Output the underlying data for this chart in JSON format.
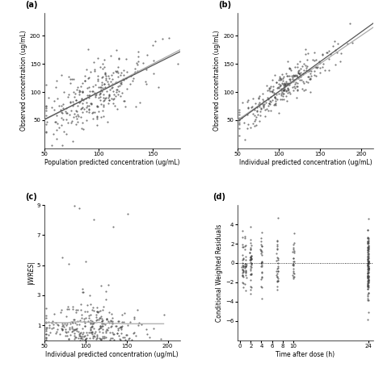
{
  "fig_width": 4.74,
  "fig_height": 4.66,
  "dpi": 100,
  "background": "#ffffff",
  "panel_labels": [
    "(a)",
    "(b)",
    "(c)",
    "(d)"
  ],
  "panel_a": {
    "xlabel": "Population predicted concentration (ug/mL)",
    "ylabel": "Observed concentration (ug/mL)",
    "xlim": [
      50,
      175
    ],
    "ylim": [
      0,
      240
    ],
    "xticks": [
      50,
      100,
      150
    ],
    "yticks": [
      50,
      100,
      150,
      200
    ],
    "line1_color": "#aaaaaa",
    "line2_color": "#555555",
    "seed": 42,
    "n_points": 300,
    "x_mean": 97,
    "x_std": 25,
    "noise_std": 28
  },
  "panel_b": {
    "xlabel": "Individual predicted concentration (ug/mL)",
    "ylabel": "Observed concentration (ug/mL)",
    "xlim": [
      50,
      215
    ],
    "ylim": [
      0,
      240
    ],
    "xticks": [
      50,
      100,
      150,
      200
    ],
    "yticks": [
      50,
      100,
      150,
      200
    ],
    "line1_color": "#aaaaaa",
    "line2_color": "#555555",
    "seed": 43,
    "n_points": 300,
    "x_mean": 108,
    "x_std": 30,
    "noise_std": 15
  },
  "panel_c": {
    "xlabel": "Individual predicted concentration (ug/mL)",
    "ylabel": "|IWRES|",
    "xlim": [
      50,
      215
    ],
    "ylim": [
      0,
      9
    ],
    "xticks": [
      50,
      100,
      150,
      200
    ],
    "yticks": [
      1,
      3,
      5,
      7,
      9
    ],
    "line_color": "#aaaaaa",
    "dashed_y": 0,
    "seed": 44,
    "n_points": 300,
    "x_mean": 108,
    "x_std": 30
  },
  "panel_d": {
    "xlabel": "Time after dose (h)",
    "ylabel": "Conditional Weighted Residuals",
    "xlim": [
      -0.5,
      25
    ],
    "ylim": [
      -8,
      6
    ],
    "xticks": [
      0,
      2,
      4,
      6,
      8,
      10,
      24
    ],
    "yticks": [
      -6,
      -4,
      -2,
      0,
      2,
      4
    ],
    "dashed_y": 0,
    "seed": 45,
    "time_points": [
      0.5,
      1,
      2,
      4,
      7,
      10,
      24
    ],
    "time_weights": [
      0.06,
      0.08,
      0.12,
      0.1,
      0.12,
      0.1,
      0.42
    ],
    "n_points": 300
  },
  "point_color": "#444444",
  "point_size": 2.5,
  "point_alpha": 0.7,
  "font_size_label": 5.5,
  "font_size_tick": 5,
  "font_size_panel": 7
}
